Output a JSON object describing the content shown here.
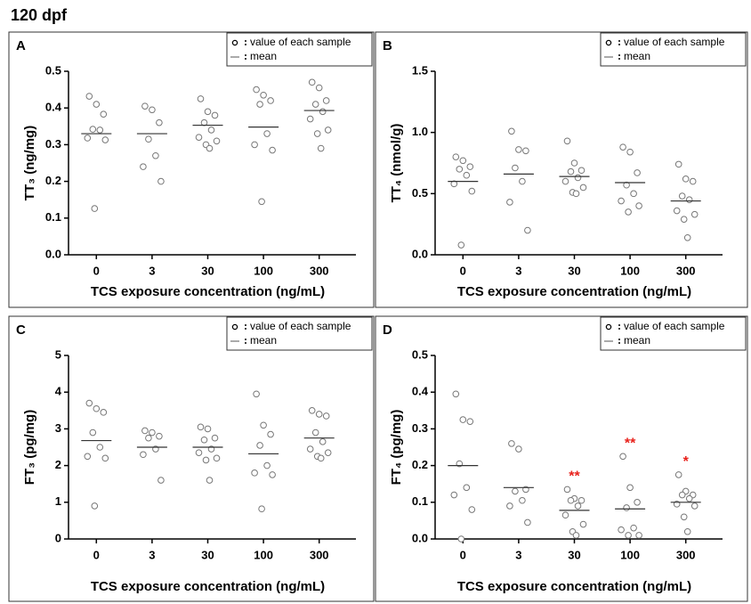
{
  "title": "120 dpf",
  "chart_data": [
    {
      "type": "dot",
      "panel": "A",
      "ylabel": "TT₃ (ng/mg)",
      "xlabel": "TCS exposure concentration (ng/mL)",
      "categories": [
        "0",
        "3",
        "30",
        "100",
        "300"
      ],
      "ylim": [
        0,
        0.5
      ],
      "yticks": [
        {
          "value": 0,
          "label": "0.0"
        },
        0.1,
        0.2,
        0.3,
        0.4,
        0.5
      ],
      "series": [
        {
          "name": "value of each sample",
          "color": "#777777",
          "values": [
            [
              0.432,
              0.41,
              0.383,
              0.342,
              0.34,
              0.318,
              0.313,
              0.126
            ],
            [
              0.405,
              0.395,
              0.36,
              0.315,
              0.27,
              0.24,
              0.2
            ],
            [
              0.425,
              0.39,
              0.38,
              0.36,
              0.34,
              0.32,
              0.31,
              0.3,
              0.29
            ],
            [
              0.45,
              0.435,
              0.42,
              0.41,
              0.33,
              0.3,
              0.285,
              0.145
            ],
            [
              0.47,
              0.455,
              0.42,
              0.41,
              0.39,
              0.37,
              0.34,
              0.33,
              0.29
            ]
          ]
        },
        {
          "name": "mean",
          "color": "#333333",
          "values": [
            0.33,
            0.33,
            0.353,
            0.348,
            0.393
          ]
        }
      ]
    },
    {
      "type": "dot",
      "panel": "B",
      "ylabel": "TT₄ (nmol/g)",
      "xlabel": "TCS exposure concentration (ng/mL)",
      "categories": [
        "0",
        "3",
        "30",
        "100",
        "300"
      ],
      "ylim": [
        0,
        1.5
      ],
      "yticks": [
        {
          "value": 0,
          "label": "0.0"
        },
        0.5,
        {
          "value": 1,
          "label": "1.0"
        },
        1.5
      ],
      "series": [
        {
          "name": "value of each sample",
          "color": "#777777",
          "values": [
            [
              0.8,
              0.77,
              0.72,
              0.7,
              0.65,
              0.58,
              0.52,
              0.08
            ],
            [
              1.01,
              0.86,
              0.85,
              0.71,
              0.6,
              0.43,
              0.2
            ],
            [
              0.93,
              0.75,
              0.69,
              0.68,
              0.63,
              0.6,
              0.55,
              0.51,
              0.5
            ],
            [
              0.88,
              0.84,
              0.67,
              0.57,
              0.5,
              0.44,
              0.4,
              0.35
            ],
            [
              0.74,
              0.62,
              0.6,
              0.48,
              0.45,
              0.36,
              0.33,
              0.29,
              0.14
            ]
          ]
        },
        {
          "name": "mean",
          "color": "#333333",
          "values": [
            0.6,
            0.66,
            0.64,
            0.59,
            0.44
          ]
        }
      ]
    },
    {
      "type": "dot",
      "panel": "C",
      "ylabel": "FT₃ (pg/mg)",
      "xlabel": "TCS exposure concentration (ng/mL)",
      "categories": [
        "0",
        "3",
        "30",
        "100",
        "300"
      ],
      "ylim": [
        0,
        5
      ],
      "yticks": [
        0,
        1,
        2,
        3,
        4,
        5
      ],
      "series": [
        {
          "name": "value of each sample",
          "color": "#777777",
          "values": [
            [
              3.7,
              3.55,
              3.45,
              2.9,
              2.5,
              2.25,
              2.2,
              0.9
            ],
            [
              2.95,
              2.9,
              2.8,
              2.75,
              2.45,
              2.3,
              1.6
            ],
            [
              3.05,
              3.0,
              2.75,
              2.7,
              2.45,
              2.35,
              2.2,
              2.15,
              1.6
            ],
            [
              3.95,
              3.1,
              2.85,
              2.55,
              2.0,
              1.8,
              1.75,
              0.82
            ],
            [
              3.5,
              3.4,
              3.35,
              2.9,
              2.65,
              2.45,
              2.35,
              2.25,
              2.2
            ]
          ]
        },
        {
          "name": "mean",
          "color": "#333333",
          "values": [
            2.68,
            2.5,
            2.5,
            2.32,
            2.75
          ]
        }
      ]
    },
    {
      "type": "dot",
      "panel": "D",
      "ylabel": "FT₄ (pg/mg)",
      "xlabel": "TCS exposure concentration (ng/mL)",
      "categories": [
        "0",
        "3",
        "30",
        "100",
        "300"
      ],
      "ylim": [
        0,
        0.5
      ],
      "yticks": [
        {
          "value": 0,
          "label": "0.0"
        },
        0.1,
        0.2,
        0.3,
        0.4,
        0.5
      ],
      "significance": [
        null,
        null,
        "**",
        "**",
        "*"
      ],
      "significance_color": "#e8201a",
      "series": [
        {
          "name": "value of each sample",
          "color": "#777777",
          "values": [
            [
              0.395,
              0.325,
              0.32,
              0.205,
              0.14,
              0.12,
              0.08,
              0.0
            ],
            [
              0.26,
              0.245,
              0.135,
              0.13,
              0.105,
              0.09,
              0.045
            ],
            [
              0.135,
              0.11,
              0.105,
              0.105,
              0.09,
              0.065,
              0.04,
              0.02,
              0.01
            ],
            [
              0.225,
              0.14,
              0.1,
              0.085,
              0.03,
              0.025,
              0.01,
              0.01
            ],
            [
              0.175,
              0.13,
              0.12,
              0.12,
              0.11,
              0.095,
              0.09,
              0.06,
              0.02
            ]
          ]
        },
        {
          "name": "mean",
          "color": "#333333",
          "values": [
            0.2,
            0.14,
            0.078,
            0.082,
            0.1
          ]
        }
      ]
    }
  ]
}
